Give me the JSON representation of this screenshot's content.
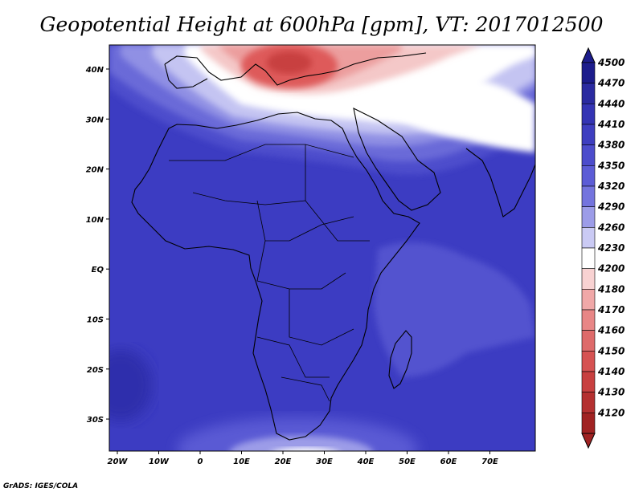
{
  "title": "Geopotential Height at 600hPa [gpm], VT: 2017012500",
  "credit": "GrADS: IGES/COLA",
  "x_ticks": [
    "20W",
    "10W",
    "0",
    "10E",
    "20E",
    "30E",
    "40E",
    "50E",
    "60E",
    "70E"
  ],
  "y_ticks": [
    "40N",
    "30N",
    "20N",
    "10N",
    "EQ",
    "10S",
    "20S",
    "30S"
  ],
  "colorbar": {
    "levels": [
      "4500",
      "4470",
      "4440",
      "4410",
      "4380",
      "4350",
      "4320",
      "4290",
      "4260",
      "4230",
      "4200",
      "4180",
      "4170",
      "4160",
      "4150",
      "4140",
      "4130",
      "4120"
    ],
    "colors": [
      "#1c1c8c",
      "#2a2aa0",
      "#3434b4",
      "#3e3ec0",
      "#4c4ccc",
      "#5c5cd6",
      "#7474de",
      "#9c9ce8",
      "#cacaf4",
      "#ffffff",
      "#f8d2d2",
      "#f0a8a8",
      "#e88686",
      "#de6a6a",
      "#d65252",
      "#c84040",
      "#b43030",
      "#a02222"
    ]
  },
  "regions": {
    "background_color": "#3c3cc2",
    "warm_color": "#de5a5a",
    "light_color": "#f4c8c8",
    "ocean_high_color": "#5252cf"
  }
}
